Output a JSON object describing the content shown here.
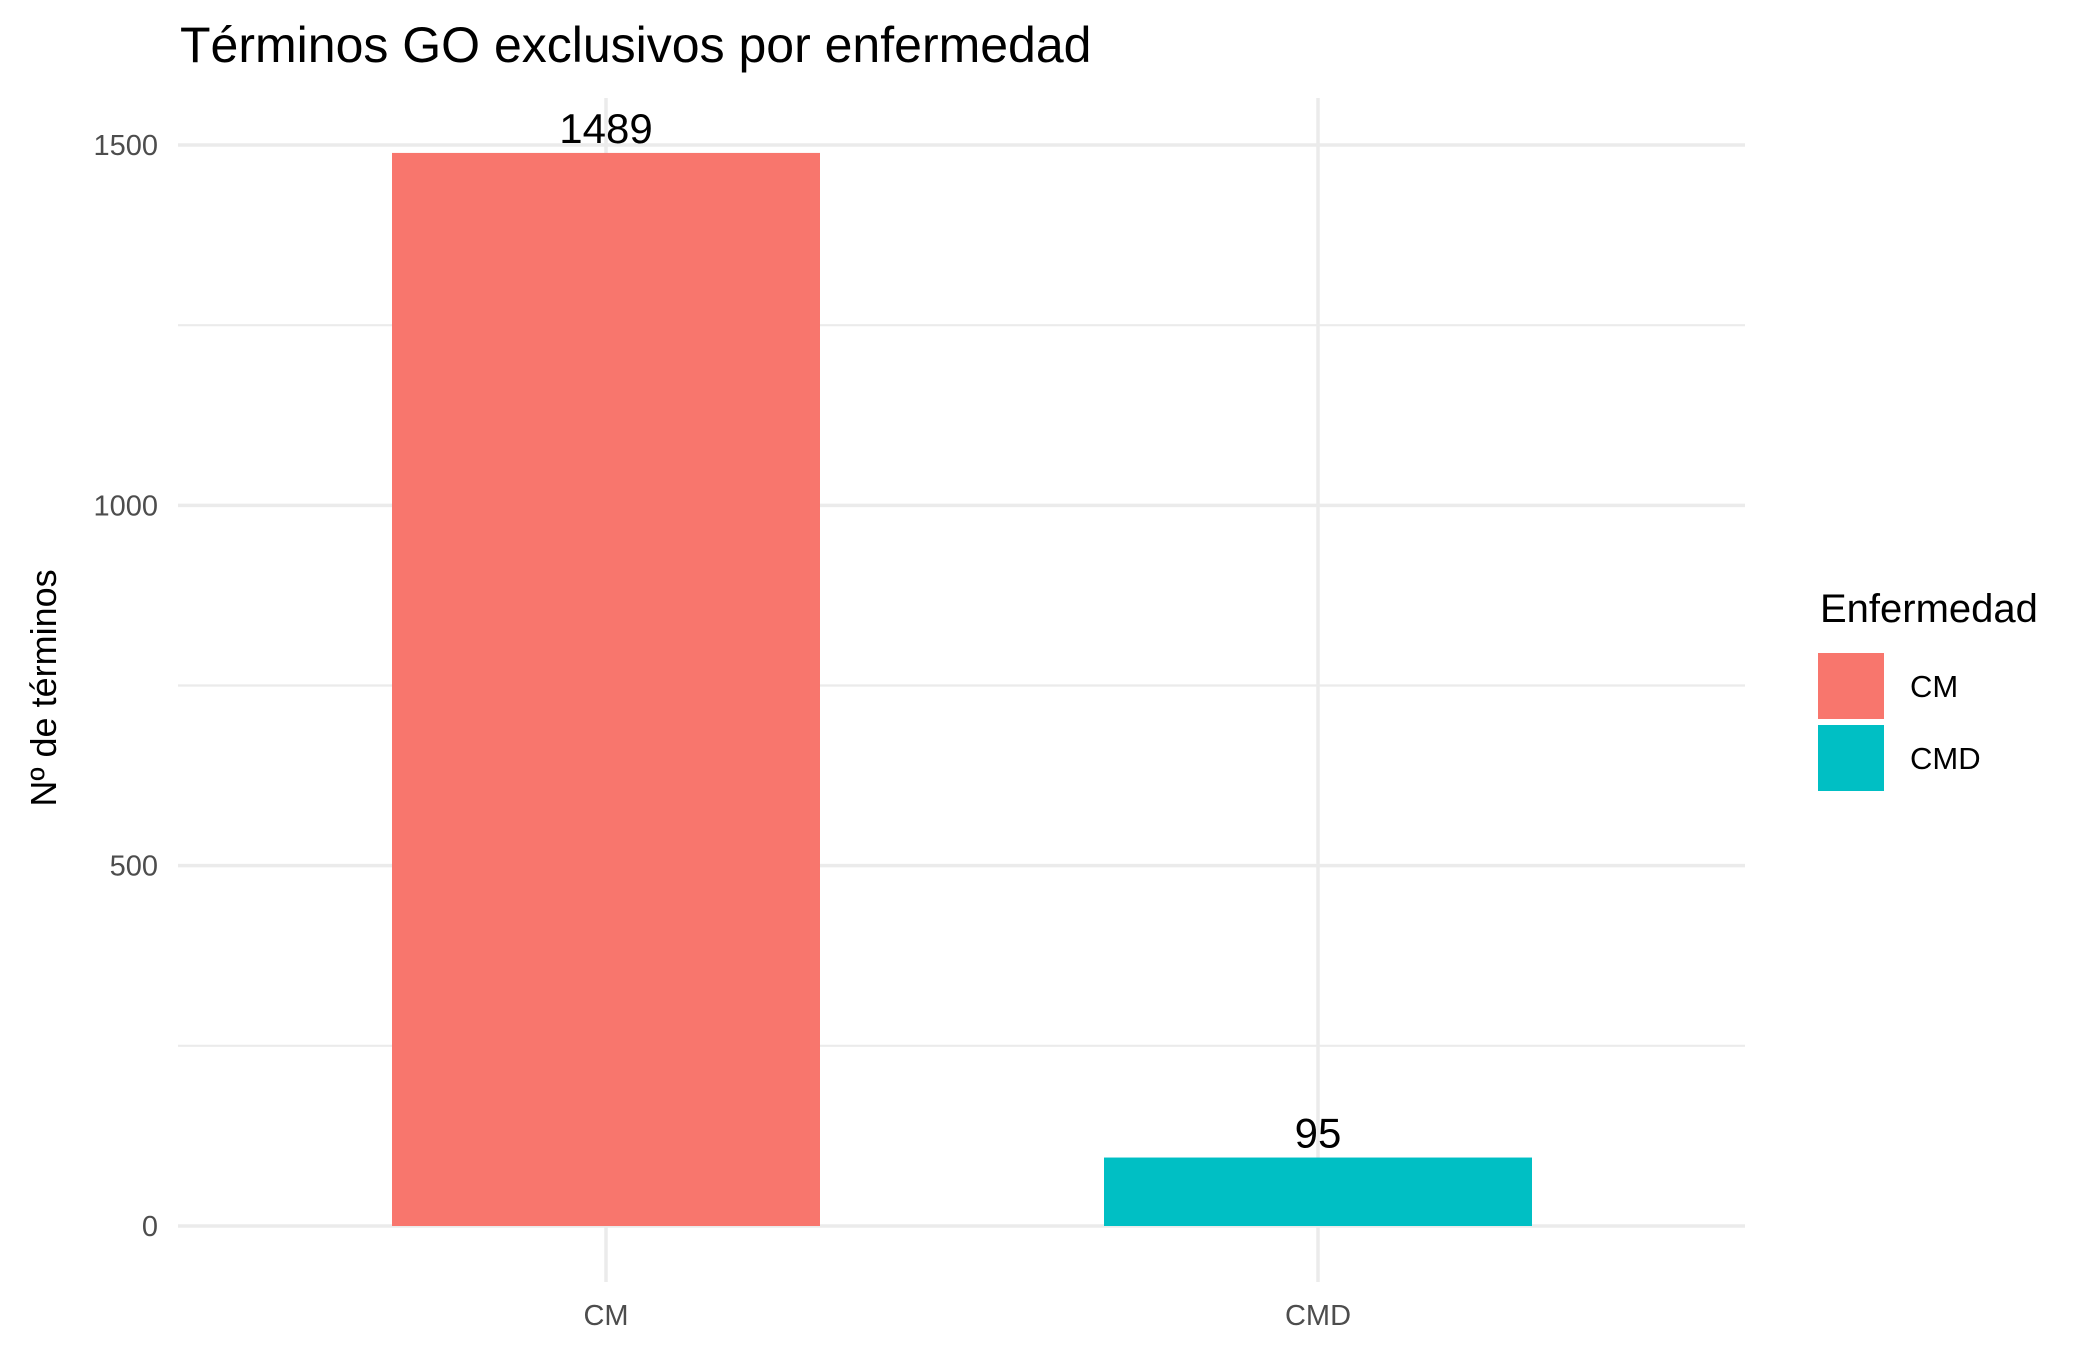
{
  "chart_data": {
    "type": "bar",
    "title": "Términos GO exclusivos por enfermedad",
    "xlabel": "",
    "ylabel": "Nº de términos",
    "categories": [
      "CM",
      "CMD"
    ],
    "values": [
      1489,
      95
    ],
    "data_labels": [
      "1489",
      "95"
    ],
    "colors": [
      "#F8766D",
      "#00BFC4"
    ],
    "ylim": [
      0,
      1570
    ],
    "yticks": [
      0,
      500,
      1000,
      1500
    ],
    "ytick_labels": [
      "0",
      "500",
      "1000",
      "1500"
    ],
    "grid": true,
    "legend": {
      "title": "Enfermedad",
      "placement": "right",
      "entries": [
        "CM",
        "CMD"
      ]
    }
  }
}
